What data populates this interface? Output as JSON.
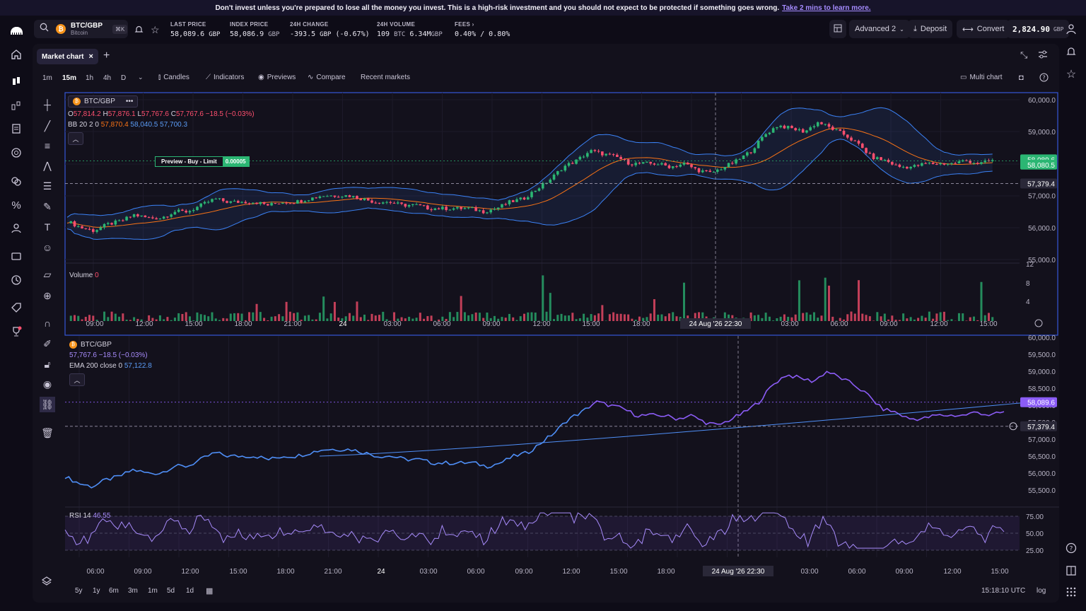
{
  "banner": {
    "text": "Don't invest unless you're prepared to lose all the money you invest. This is a high-risk investment and you should not expect to be protected if something goes wrong.",
    "link": "Take 2 mins to learn more."
  },
  "pair": {
    "symbol": "BTC/GBP",
    "name": "Bitcoin",
    "shortcut": "⌘K",
    "icon": "bitcoin-icon"
  },
  "stats": [
    {
      "label": "Last price",
      "value": "58,089.6",
      "unit": "GBP",
      "color": "#ff4f6e"
    },
    {
      "label": "Index price",
      "value": "58,086.9",
      "unit": "GBP"
    },
    {
      "label": "24h change",
      "value": "-393.5",
      "unit": "GBP",
      "extra": "(-0.67%)",
      "color": "#ff4f6e"
    },
    {
      "label": "24h volume",
      "value": "109",
      "unit": "BTC",
      "extra": "6.34M",
      "extra_unit": "GBP"
    },
    {
      "label": "Fees",
      "value": "0.40%",
      "extra": "/ 0.80%"
    }
  ],
  "topbar": {
    "layout": "Advanced 2",
    "deposit": "Deposit",
    "convert": "Convert",
    "balance": "2,824.90",
    "balance_unit": "GBP"
  },
  "tab": {
    "label": "Market chart"
  },
  "intervals": [
    "1m",
    "15m",
    "1h",
    "4h",
    "D"
  ],
  "active_interval": "15m",
  "toolbar": {
    "candles": "Candles",
    "indicators": "Indicators",
    "previews": "Previews",
    "compare": "Compare",
    "recent": "Recent markets",
    "multichart": "Multi chart"
  },
  "legend1": {
    "symbol": "BTC/GBP",
    "O": "57,814.2",
    "H": "57,876.1",
    "L": "57,767.6",
    "C": "57,767.6",
    "change": "−18.5 (−0.03%)",
    "bb_label": "BB 20 2 0",
    "bb_mid": "57,870.4",
    "bb_upper": "58,040.5",
    "bb_lower": "57,700.3"
  },
  "preview_order": {
    "label": "Preview - Buy - Limit",
    "qty": "0.00005"
  },
  "price_axis1": [
    "60,000.0",
    "59,000.0",
    "58,000.0",
    "57,000.0",
    "56,000.0",
    "55,000.0"
  ],
  "price_tags1": [
    {
      "value": "58,089.6",
      "color": "#2bb673"
    },
    {
      "value": "58,080.5",
      "color": "#2bb673"
    },
    {
      "value": "57,379.4",
      "color": "#2a2838"
    }
  ],
  "volume": {
    "label": "Volume",
    "value": "0",
    "axis": [
      "12",
      "8",
      "4"
    ]
  },
  "time_axis": [
    "09:00",
    "12:00",
    "15:00",
    "18:00",
    "21:00",
    "24",
    "03:00",
    "06:00",
    "09:00",
    "12:00",
    "15:00",
    "18:00",
    "24 Aug '26  22:30",
    "03:00",
    "06:00",
    "09:00",
    "12:00",
    "15:00"
  ],
  "cursor_time": "24 Aug '26  22:30",
  "legend2": {
    "symbol": "BTC/GBP",
    "line": "57,767.6  −18.5 (−0.03%)",
    "ema_label": "EMA 200 close 0",
    "ema_value": "57,122.8"
  },
  "price_axis2": [
    "60,000.0",
    "59,500.0",
    "59,000.0",
    "58,500.0",
    "58,000.0",
    "57,500.0",
    "57,000.0",
    "56,500.0",
    "56,000.0",
    "55,500.0"
  ],
  "price_tags2": [
    {
      "value": "58,089.6",
      "color": "#8b5cf6"
    },
    {
      "value": "57,379.4",
      "color": "#2a2838"
    }
  ],
  "rsi": {
    "label": "RSI 14",
    "value": "46.55",
    "axis": [
      "75.00",
      "50.00",
      "25.00"
    ]
  },
  "time_axis2": [
    "06:00",
    "09:00",
    "12:00",
    "15:00",
    "18:00",
    "21:00",
    "24",
    "03:00",
    "06:00",
    "09:00",
    "12:00",
    "15:00",
    "18:00",
    "24 Aug '26  22:30",
    "03:00",
    "06:00",
    "09:00",
    "12:00",
    "15:00"
  ],
  "ranges": [
    "5y",
    "1y",
    "6m",
    "3m",
    "1m",
    "5d",
    "1d"
  ],
  "clock": "15:18:10 UTC",
  "scale": "log",
  "colors": {
    "up": "#2bb673",
    "down": "#ff4f6e",
    "bb": "#3b82f6",
    "mid": "#f97316",
    "purple": "#8b5cf6"
  },
  "chart_data": {
    "type": "candlestick",
    "price_range": [
      55000,
      60000
    ],
    "close_series": [
      56200,
      56000,
      55900,
      56100,
      56200,
      56400,
      56300,
      56300,
      56500,
      56500,
      56700,
      56900,
      56800,
      56800,
      56800,
      56700,
      56800,
      56800,
      56900,
      57000,
      57000,
      57000,
      56900,
      56800,
      56800,
      56700,
      56700,
      56600,
      56600,
      56600,
      56600,
      56500,
      56600,
      56800,
      56900,
      57200,
      57500,
      57900,
      58100,
      58400,
      58300,
      58200,
      58000,
      58000,
      58000,
      57900,
      58000,
      57800,
      57700,
      57900,
      58100,
      58400,
      58900,
      59200,
      59100,
      59000,
      59300,
      59100,
      58900,
      58600,
      58200,
      58100,
      57900,
      57900,
      58000,
      58000,
      58000,
      58100,
      58000,
      58100
    ],
    "volume_max": 12,
    "ema200_range": [
      56500,
      58100
    ],
    "rsi_range": [
      25,
      75
    ]
  }
}
